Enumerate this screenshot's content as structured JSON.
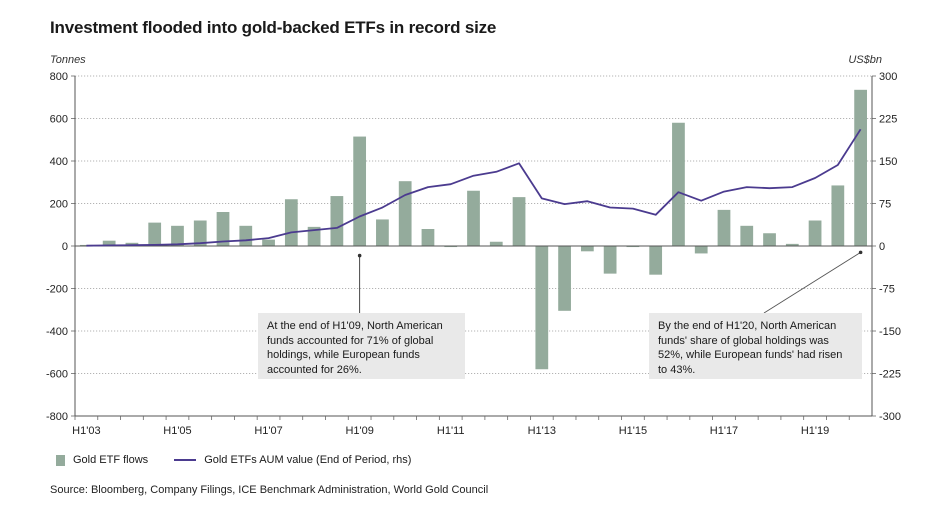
{
  "title": "Investment flooded into gold-backed ETFs in record size",
  "left_unit": "Tonnes",
  "right_unit": "US$bn",
  "legend": {
    "bars": "Gold ETF flows",
    "line": "Gold ETFs AUM value (End of Period, rhs)"
  },
  "callouts": {
    "left": "At the end of H1'09, North American funds accounted for 71% of global holdings, while European funds accounted for 26%.",
    "right": "By the end of H1'20, North American funds' share of global holdings was 52%, while European funds' had risen to 43%."
  },
  "source": "Source: Bloomberg, Company Filings, ICE Benchmark Administration, World Gold Council",
  "colors": {
    "bars": "#94ab9c",
    "line": "#4b3b8f",
    "callout_bg": "#e9e9e9"
  },
  "chart_data": {
    "type": "bar+line",
    "categories": [
      "H1'03",
      "H2'03",
      "H1'04",
      "H2'04",
      "H1'05",
      "H2'05",
      "H1'06",
      "H2'06",
      "H1'07",
      "H2'07",
      "H1'08",
      "H2'08",
      "H1'09",
      "H2'09",
      "H1'10",
      "H2'10",
      "H1'11",
      "H2'11",
      "H1'12",
      "H2'12",
      "H1'13",
      "H2'13",
      "H1'14",
      "H2'14",
      "H1'15",
      "H2'15",
      "H1'16",
      "H2'16",
      "H1'17",
      "H2'17",
      "H1'18",
      "H2'18",
      "H1'19",
      "H2'19",
      "H1'20"
    ],
    "x_tick_labels": [
      "H1'03",
      "H1'05",
      "H1'07",
      "H1'09",
      "H1'11",
      "H1'13",
      "H1'15",
      "H1'17",
      "H1'19"
    ],
    "series": [
      {
        "name": "Gold ETF flows",
        "axis": "left",
        "type": "bar",
        "values": [
          5,
          25,
          15,
          110,
          95,
          120,
          160,
          95,
          30,
          220,
          90,
          235,
          515,
          125,
          305,
          80,
          -5,
          260,
          20,
          230,
          -580,
          -305,
          -25,
          -130,
          -5,
          -135,
          580,
          -35,
          170,
          95,
          60,
          10,
          120,
          285,
          735
        ]
      },
      {
        "name": "Gold ETFs AUM value (End of Period, rhs)",
        "axis": "right",
        "type": "line",
        "values": [
          0.5,
          1,
          1.5,
          2,
          3,
          5,
          8,
          10,
          14,
          24,
          28,
          32,
          52,
          68,
          90,
          104,
          109,
          124,
          131,
          146,
          84,
          74,
          79,
          68,
          66,
          55,
          95,
          80,
          96,
          104,
          102,
          104,
          120,
          143,
          206
        ]
      }
    ],
    "y_left": {
      "min": -800,
      "max": 800,
      "ticks": [
        800,
        600,
        400,
        200,
        0,
        -200,
        -400,
        -600,
        -800
      ]
    },
    "y_right": {
      "min": -300,
      "max": 300,
      "ticks": [
        300,
        225,
        150,
        75,
        0,
        -75,
        -150,
        -225,
        -300
      ]
    },
    "grid": "horizontal dotted",
    "legend_position": "bottom-left"
  }
}
